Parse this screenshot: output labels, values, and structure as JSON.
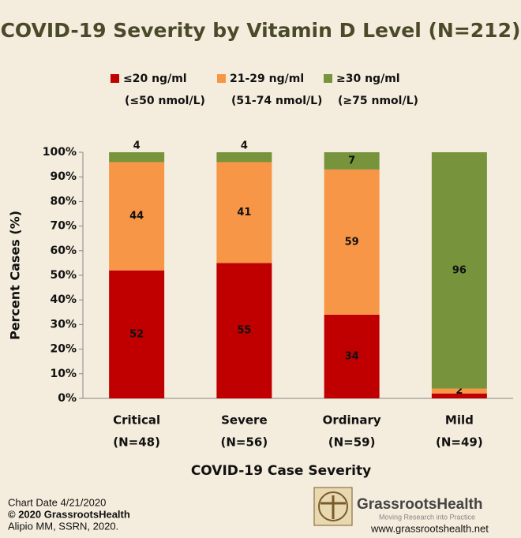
{
  "chart_data": {
    "type": "stacked_bar",
    "title": "COVID-19 Severity by Vitamin D Level (N=212)",
    "x_label": "COVID-19 Case Severity",
    "y_label": "Percent Cases (%)",
    "categories": [
      "Critical",
      "Severe",
      "Ordinary",
      "Mild"
    ],
    "category_notes": [
      "(N=48)",
      "(N=56)",
      "(N=59)",
      "(N=49)"
    ],
    "series": [
      {
        "name": "≤20 ng/ml",
        "note": "(≤50 nmol/L)",
        "color": "#c00000",
        "values": [
          52,
          55,
          34,
          2
        ],
        "value_labels": [
          "52",
          "55",
          "34",
          null
        ]
      },
      {
        "name": "21-29 ng/ml",
        "note": "(51-74 nmol/L)",
        "color": "#f79646",
        "values": [
          44,
          41,
          59,
          2
        ]
      },
      {
        "name": "≥30 ng/ml",
        "note": "(≥75 nmol/L)",
        "color": "#77933c",
        "values": [
          4,
          4,
          7,
          96
        ]
      }
    ],
    "ylim": [
      0,
      100
    ],
    "yticks": [
      {
        "value": 0,
        "label": "0%"
      },
      {
        "value": 10,
        "label": "10%"
      },
      {
        "value": 20,
        "label": "20%"
      },
      {
        "value": 30,
        "label": "30%"
      },
      {
        "value": 40,
        "label": "40%"
      },
      {
        "value": 50,
        "label": "50%"
      },
      {
        "value": 60,
        "label": "60%"
      },
      {
        "value": 70,
        "label": "70%"
      },
      {
        "value": 80,
        "label": "80%"
      },
      {
        "value": 90,
        "label": "90%"
      },
      {
        "value": 100,
        "label": "100%"
      }
    ],
    "grid": false,
    "legend_position": "top"
  },
  "footer": {
    "date": "Chart Date 4/21/2020",
    "copyright": "© 2020 GrassrootsHealth",
    "source": "Alipio MM, SSRN, 2020.",
    "logo_name": "GrassrootsHealth",
    "logo_tagline": "Moving Research into Practice",
    "url": "www.grassrootshealth.net"
  }
}
